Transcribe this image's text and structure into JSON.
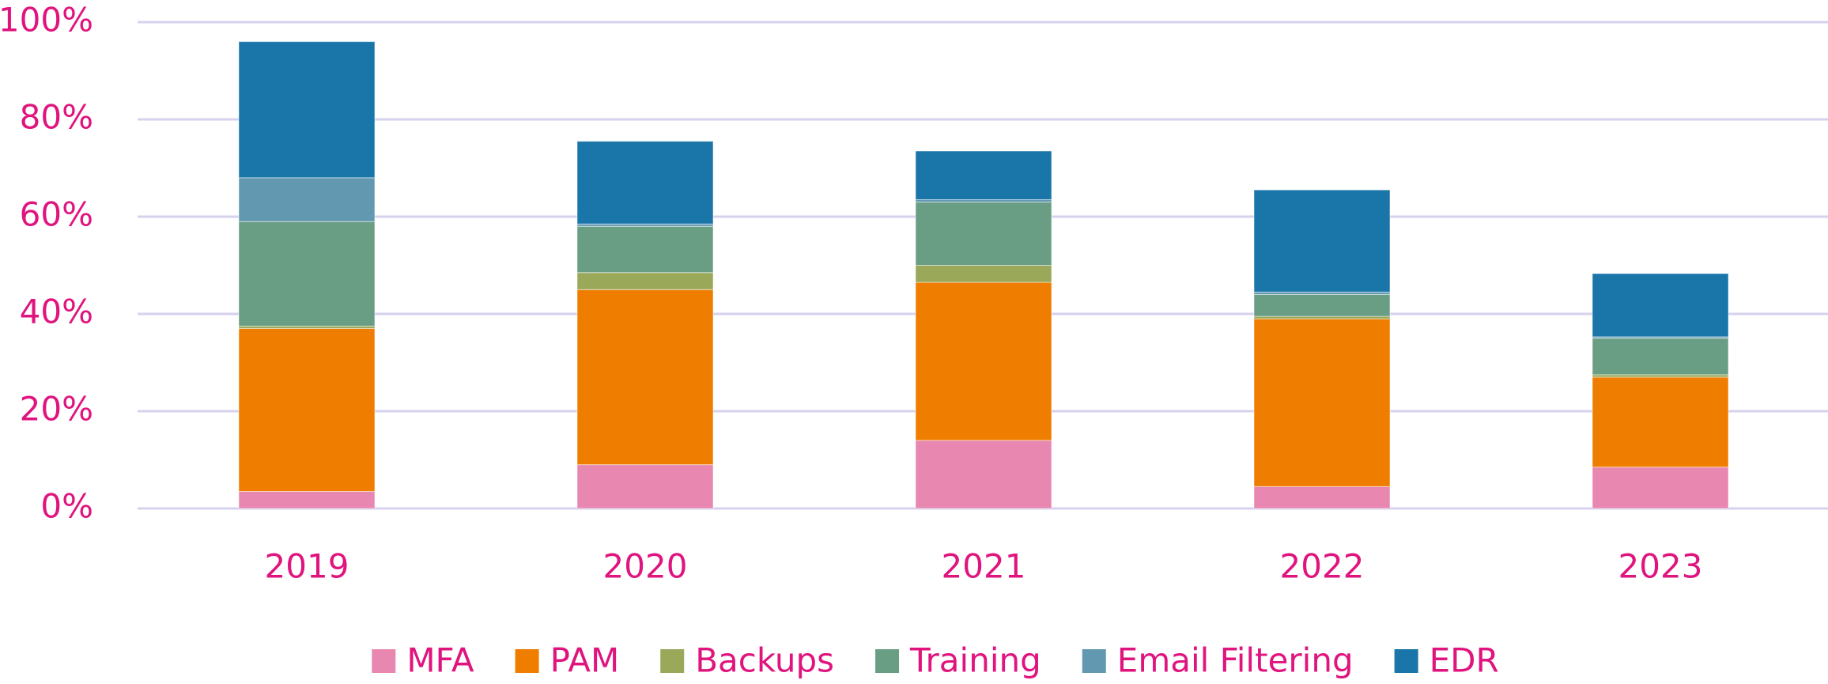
{
  "chart_data": {
    "type": "stacked_bar",
    "categories": [
      "2019",
      "2020",
      "2021",
      "2022",
      "2023"
    ],
    "series": [
      {
        "name": "MFA",
        "color": "#e887b0",
        "values": [
          3.5,
          9,
          14,
          4.5,
          8.5
        ]
      },
      {
        "name": "PAM",
        "color": "#ef7d00",
        "values": [
          33.5,
          36,
          32.5,
          34.5,
          18.5
        ]
      },
      {
        "name": "Backups",
        "color": "#9aa85a",
        "values": [
          0.5,
          3.5,
          3.5,
          0.5,
          0.5
        ]
      },
      {
        "name": "Training",
        "color": "#6a9e84",
        "values": [
          21.5,
          9.5,
          13,
          4.5,
          7.5
        ]
      },
      {
        "name": "Email Filtering",
        "color": "#6299b0",
        "values": [
          9,
          0.5,
          0.5,
          0.5,
          0.3
        ]
      },
      {
        "name": "EDR",
        "color": "#1a75a8",
        "values": [
          28,
          17,
          10,
          21,
          13
        ]
      }
    ],
    "ylim": [
      0,
      100
    ],
    "yticks": [
      {
        "value": 0,
        "label": "0%"
      },
      {
        "value": 20,
        "label": "20%"
      },
      {
        "value": 40,
        "label": "40%"
      },
      {
        "value": 60,
        "label": "60%"
      },
      {
        "value": 80,
        "label": "80%"
      },
      {
        "value": 100,
        "label": "100%"
      }
    ],
    "grid": true,
    "legend": "bottom"
  }
}
